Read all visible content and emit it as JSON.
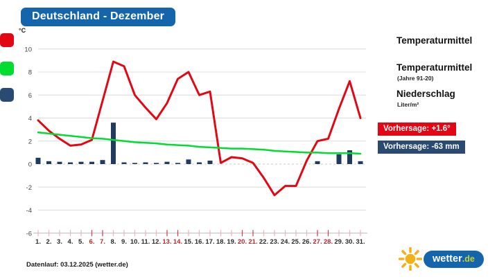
{
  "header": {
    "title": "Deutschland - Dezember"
  },
  "chart_data": {
    "type": "line+bar",
    "unit": "°C",
    "ylim": [
      -6,
      10
    ],
    "y_ticks": [
      "10",
      "8",
      "6",
      "4",
      "2",
      "0",
      "-2",
      "-4",
      "-6"
    ],
    "x": [
      1,
      2,
      3,
      4,
      5,
      6,
      7,
      8,
      9,
      10,
      11,
      12,
      13,
      14,
      15,
      16,
      17,
      18,
      19,
      20,
      21,
      22,
      23,
      24,
      25,
      26,
      27,
      28,
      29,
      30,
      31
    ],
    "x_labels": [
      "1.",
      "2.",
      "3.",
      "4.",
      "5.",
      "6.",
      "7.",
      "8.",
      "9.",
      "10.",
      "11.",
      "12.",
      "13.",
      "14.",
      "15.",
      "16.",
      "17.",
      "18.",
      "19.",
      "20.",
      "21.",
      "22.",
      "23.",
      "24.",
      "25.",
      "26.",
      "27.",
      "28.",
      "29.",
      "30.",
      "31."
    ],
    "weekend_days": [
      6,
      7,
      13,
      14,
      20,
      21,
      27,
      28
    ],
    "grid_on": true,
    "series": [
      {
        "name": "Temperaturmittel",
        "display_type": "line",
        "color": "#e30613",
        "values": [
          3.8,
          2.9,
          2.2,
          1.6,
          1.7,
          2.1,
          5.5,
          8.9,
          8.5,
          6.0,
          4.9,
          3.9,
          5.3,
          7.4,
          8.0,
          6.0,
          6.3,
          0.1,
          0.6,
          0.5,
          0.1,
          -1.2,
          -2.7,
          -1.9,
          -1.9,
          0.3,
          2.0,
          2.2,
          4.8,
          7.2,
          4.0
        ]
      },
      {
        "name": "Temperaturmittel (Jahre 91-20)",
        "display_type": "line",
        "color": "#00dc30",
        "values": [
          2.75,
          2.65,
          2.55,
          2.45,
          2.35,
          2.25,
          2.2,
          2.1,
          2.0,
          1.9,
          1.85,
          1.8,
          1.7,
          1.65,
          1.6,
          1.5,
          1.45,
          1.4,
          1.35,
          1.35,
          1.3,
          1.25,
          1.15,
          1.1,
          1.05,
          1.0,
          1.0,
          0.95,
          0.95,
          0.95,
          0.9
        ]
      },
      {
        "name": "Niederschlag (Liter/m²)",
        "display_type": "bar",
        "color": "#203b60",
        "values": [
          0.55,
          0.25,
          0.2,
          0.15,
          0.2,
          0.2,
          0.35,
          3.6,
          0.15,
          0.1,
          0.15,
          0.1,
          0.2,
          0.1,
          0.4,
          0.15,
          0.3,
          0,
          0,
          0,
          0,
          0,
          0,
          0,
          0,
          0,
          0.25,
          0,
          0.85,
          1.2,
          0.25
        ]
      }
    ],
    "colors": {
      "grid": "#dcdcdc",
      "zero_line": "#c9c9c9",
      "axis_line": "#bbbbbb",
      "tick": "#eab6ba",
      "tick_weekend": "#cf3d47",
      "label": "#2b2b2b",
      "label_weekend": "#c1272d",
      "ytick_label": "#444444"
    }
  },
  "legend": {
    "items": [
      {
        "label": "Temperaturmittel",
        "sublabel": "",
        "color": "#e30613"
      },
      {
        "label": "Temperaturmittel",
        "sublabel": "(Jahre 91-20)",
        "color": "#00dc30"
      },
      {
        "label": "Niederschlag",
        "sublabel": "Liter/m²",
        "color": "#2b4a73"
      }
    ],
    "forecast_temp": "Vorhersage: +1.6°",
    "forecast_precip": "Vorhersage: -63 mm"
  },
  "footer": {
    "datenlauf": "Datenlauf: 03.12.2025 (wetter.de)",
    "logo_word": "wetter",
    "logo_tld": ".de"
  }
}
